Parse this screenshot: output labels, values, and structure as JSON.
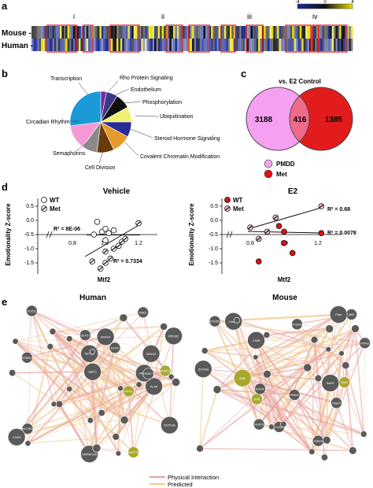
{
  "panel_labels": {
    "a": "a",
    "b": "b",
    "c": "c",
    "d": "d",
    "e": "e"
  },
  "panel_a": {
    "row_labels": [
      "Mouse -",
      "Human -"
    ],
    "region_labels": [
      "i",
      "ii",
      "iii",
      "iv"
    ],
    "scale_ticks": [
      "-4",
      "0",
      "4"
    ],
    "colors": {
      "low": "#1a2a9a",
      "mid": "#101010",
      "high": "#e8e000",
      "box": "#e02020"
    }
  },
  "panel_b": {
    "slices": [
      {
        "label": "Rho Protein Signaling",
        "value": 3,
        "color": "#7a2a9a"
      },
      {
        "label": "Endothelium",
        "value": 6,
        "color": "#3a3a8a"
      },
      {
        "label": "Phosphorylation",
        "value": 8,
        "color": "#101010"
      },
      {
        "label": "Ubiquitination",
        "value": 8,
        "color": "#f0f070"
      },
      {
        "label": "Steroid Hormone Signaling",
        "value": 8,
        "color": "#2a2a9a"
      },
      {
        "label": "Covalent Chromatin Modification",
        "value": 10,
        "color": "#e59a2a"
      },
      {
        "label": "Cell Division",
        "value": 9,
        "color": "#6a3a0a"
      },
      {
        "label": "Semaphorins",
        "value": 8,
        "color": "#8a8a8a"
      },
      {
        "label": "Circadian Rhythm",
        "value": 13,
        "color": "#f59ad5"
      },
      {
        "label": "Transcription",
        "value": 27,
        "color": "#1a9ad6"
      }
    ]
  },
  "panel_c": {
    "title": "vs. E2 Control",
    "left_value": "3188",
    "overlap_value": "416",
    "right_value": "1385",
    "legend": [
      {
        "label": "PMDD",
        "color": "#f5a0f0"
      },
      {
        "label": "Met",
        "color": "#e01010"
      }
    ]
  },
  "panel_d": {
    "vehicle": {
      "title": "Vehicle",
      "ylabel": "Emotionality Z-score",
      "xlabel": "Mtf2",
      "legend": [
        "WT",
        "Met"
      ],
      "r2_labels": [
        "R² = 8E-06",
        "R² = 0.7334"
      ],
      "xticks": [
        "0.8",
        "1.0",
        "1.2"
      ],
      "yticks": [
        "0.5",
        "0.0",
        "-0.5",
        "-1.0",
        "-1.5"
      ]
    },
    "e2": {
      "title": "E2",
      "ylabel": "Emotionality Z-score",
      "xlabel": "Mtf2",
      "legend": [
        "WT",
        "Met"
      ],
      "r2_labels": [
        "R² = 0.68",
        "R² = 0.0078"
      ],
      "xticks": [
        "0.8",
        "1.0",
        "1.2"
      ],
      "yticks": [
        "0.5",
        "0.0",
        "-0.5",
        "-1.0",
        "-1.5"
      ]
    }
  },
  "panel_e": {
    "human_title": "Human",
    "mouse_title": "Mouse",
    "legend": [
      {
        "label": "Physical Interaction",
        "color": "#e8a0a0"
      },
      {
        "label": "Predicted",
        "color": "#f0c890"
      }
    ],
    "human_nodes": [
      "PLAA",
      "HDAC9",
      "HDAC4",
      "HDAC5",
      "MTF2",
      "NCOR2",
      "EHMT1",
      "HDAC7",
      "EZH2",
      "SETD7",
      "SIRT1",
      "SMARCA5",
      "DNMT3A",
      "CHD3",
      "PRDM2",
      "SUZ12",
      "NSD1",
      "SETD2",
      "SETD1B",
      "KDM5C"
    ],
    "mouse_nodes": [
      "Mtf2",
      "Hdac7",
      "Hdac9",
      "Mll3",
      "Chd5",
      "Ezh2",
      "Sirt6",
      "Setd1b",
      "Setd7",
      "Nsd1",
      "Smarca4",
      "Kdm5b",
      "Plaa",
      "Ehmt1",
      "Hdac4",
      "Hdac5",
      "Dnmt3a",
      "Prdm2"
    ]
  }
}
